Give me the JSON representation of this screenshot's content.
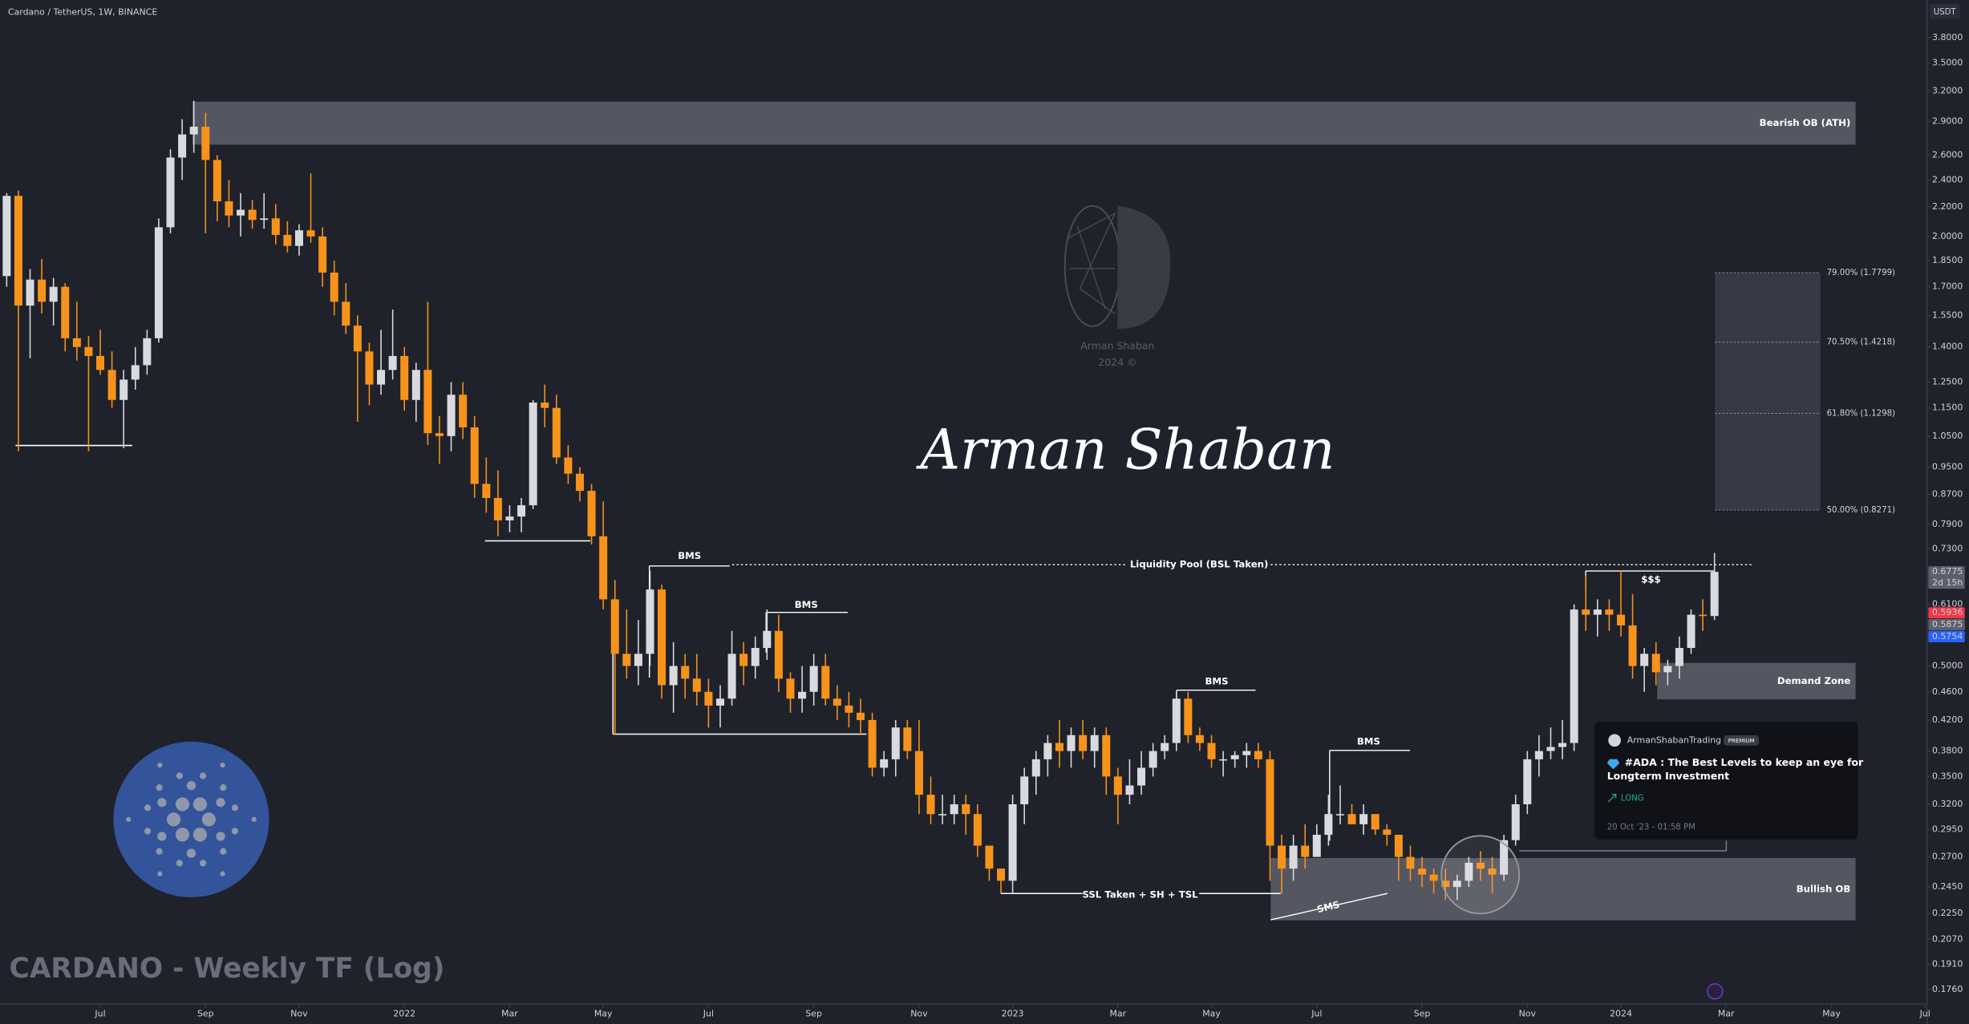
{
  "chart_data": {
    "type": "candlestick",
    "title": "Cardano / TetherUS, 1W, BINANCE",
    "subtitle": "CARDANO - Weekly TF (Log)",
    "y_unit": "USDT",
    "log_scale": true,
    "grid": false,
    "up_color": "#d8dae0",
    "down_color": "#f7931a",
    "ylim": [
      0.168,
      4.29
    ],
    "yticks": [
      {
        "value": 3.8,
        "label": "3.8000"
      },
      {
        "value": 3.5,
        "label": "3.5000"
      },
      {
        "value": 3.2,
        "label": "3.2000"
      },
      {
        "value": 2.9,
        "label": "2.9000"
      },
      {
        "value": 2.6,
        "label": "2.6000"
      },
      {
        "value": 2.4,
        "label": "2.4000"
      },
      {
        "value": 2.2,
        "label": "2.2000"
      },
      {
        "value": 2.0,
        "label": "2.0000"
      },
      {
        "value": 1.85,
        "label": "1.8500"
      },
      {
        "value": 1.7,
        "label": "1.7000"
      },
      {
        "value": 1.55,
        "label": "1.5500"
      },
      {
        "value": 1.4,
        "label": "1.4000"
      },
      {
        "value": 1.25,
        "label": "1.2500"
      },
      {
        "value": 1.15,
        "label": "1.1500"
      },
      {
        "value": 1.05,
        "label": "1.0500"
      },
      {
        "value": 0.95,
        "label": "0.9500"
      },
      {
        "value": 0.87,
        "label": "0.8700"
      },
      {
        "value": 0.79,
        "label": "0.7900"
      },
      {
        "value": 0.73,
        "label": "0.7300"
      },
      {
        "value": 0.61,
        "label": "0.6100"
      },
      {
        "value": 0.5,
        "label": "0.5000"
      },
      {
        "value": 0.46,
        "label": "0.4600"
      },
      {
        "value": 0.42,
        "label": "0.4200"
      },
      {
        "value": 0.38,
        "label": "0.3800"
      },
      {
        "value": 0.35,
        "label": "0.3500"
      },
      {
        "value": 0.32,
        "label": "0.3200"
      },
      {
        "value": 0.295,
        "label": "0.2950"
      },
      {
        "value": 0.27,
        "label": "0.2700"
      },
      {
        "value": 0.245,
        "label": "0.2450"
      },
      {
        "value": 0.225,
        "label": "0.2250"
      },
      {
        "value": 0.207,
        "label": "0.2070"
      },
      {
        "value": 0.191,
        "label": "0.1910"
      },
      {
        "value": 0.176,
        "label": "0.1760"
      }
    ],
    "price_labels": [
      {
        "value": 0.6775,
        "label": "0.6775",
        "note": "2d 15h",
        "color": "#5d606b"
      },
      {
        "value": 0.5936,
        "label": "0.5936",
        "color": "#f23645"
      },
      {
        "value": 0.5875,
        "label": "0.5875",
        "color": "#5d606b"
      },
      {
        "value": 0.5754,
        "label": "0.5754",
        "color": "#2962ff"
      }
    ],
    "categories": [
      null,
      null,
      null,
      null,
      null,
      null,
      null,
      null,
      "Jul",
      null,
      null,
      null,
      null,
      null,
      null,
      null,
      null,
      "Sep",
      null,
      null,
      null,
      null,
      null,
      null,
      null,
      "Nov",
      null,
      null,
      null,
      null,
      null,
      null,
      null,
      null,
      "2022",
      null,
      null,
      null,
      null,
      null,
      null,
      null,
      null,
      "Mar",
      null,
      null,
      null,
      null,
      null,
      null,
      null,
      "May",
      null,
      null,
      null,
      null,
      null,
      null,
      null,
      null,
      "Jul",
      null,
      null,
      null,
      null,
      null,
      null,
      null,
      null,
      "Sep",
      null,
      null,
      null,
      null,
      null,
      null,
      null,
      null,
      "Nov",
      null,
      null,
      null,
      null,
      null,
      null,
      null,
      "2023",
      null,
      null,
      null,
      null,
      null,
      null,
      null,
      null,
      "Mar",
      null,
      null,
      null,
      null,
      null,
      null,
      null,
      "May",
      null,
      null,
      null,
      null,
      null,
      null,
      null,
      null,
      "Jul",
      null,
      null,
      null,
      null,
      null,
      null,
      null,
      null,
      "Sep",
      null,
      null,
      null,
      null,
      null,
      null,
      null,
      null,
      "Nov",
      null,
      null,
      null,
      null,
      null,
      null,
      null,
      "2024",
      null,
      null,
      null,
      null,
      null,
      null,
      null,
      null,
      "Mar",
      null,
      null,
      null,
      null,
      null,
      null,
      null,
      null,
      "May",
      null,
      null,
      null,
      null,
      null,
      null,
      null,
      "Jul"
    ],
    "ohlc": [
      [
        1.76,
        2.3,
        1.7,
        2.28
      ],
      [
        2.28,
        2.32,
        1.0,
        1.6
      ],
      [
        1.6,
        1.8,
        1.35,
        1.74
      ],
      [
        1.74,
        1.86,
        1.56,
        1.62
      ],
      [
        1.62,
        1.75,
        1.5,
        1.7
      ],
      [
        1.7,
        1.72,
        1.38,
        1.44
      ],
      [
        1.44,
        1.62,
        1.34,
        1.4
      ],
      [
        1.4,
        1.45,
        1.0,
        1.36
      ],
      [
        1.36,
        1.48,
        1.28,
        1.3
      ],
      [
        1.3,
        1.38,
        1.15,
        1.18
      ],
      [
        1.18,
        1.3,
        1.01,
        1.26
      ],
      [
        1.26,
        1.4,
        1.22,
        1.32
      ],
      [
        1.32,
        1.48,
        1.28,
        1.44
      ],
      [
        1.44,
        2.12,
        1.42,
        2.06
      ],
      [
        2.06,
        2.65,
        2.02,
        2.58
      ],
      [
        2.58,
        2.92,
        2.4,
        2.78
      ],
      [
        2.78,
        3.1,
        2.62,
        2.85
      ],
      [
        2.85,
        2.98,
        2.02,
        2.56
      ],
      [
        2.56,
        2.6,
        2.1,
        2.24
      ],
      [
        2.24,
        2.4,
        2.06,
        2.14
      ],
      [
        2.14,
        2.3,
        2.0,
        2.18
      ],
      [
        2.18,
        2.25,
        2.05,
        2.11
      ],
      [
        2.11,
        2.3,
        2.05,
        2.12
      ],
      [
        2.12,
        2.22,
        1.95,
        2.01
      ],
      [
        2.01,
        2.1,
        1.9,
        1.94
      ],
      [
        1.94,
        2.08,
        1.88,
        2.04
      ],
      [
        2.04,
        2.45,
        1.96,
        2.0
      ],
      [
        2.0,
        2.06,
        1.7,
        1.78
      ],
      [
        1.78,
        1.85,
        1.55,
        1.62
      ],
      [
        1.62,
        1.72,
        1.46,
        1.5
      ],
      [
        1.5,
        1.55,
        1.1,
        1.38
      ],
      [
        1.38,
        1.42,
        1.16,
        1.24
      ],
      [
        1.24,
        1.48,
        1.2,
        1.3
      ],
      [
        1.3,
        1.58,
        1.26,
        1.36
      ],
      [
        1.36,
        1.4,
        1.14,
        1.18
      ],
      [
        1.18,
        1.33,
        1.1,
        1.3
      ],
      [
        1.3,
        1.62,
        1.02,
        1.06
      ],
      [
        1.06,
        1.12,
        0.96,
        1.05
      ],
      [
        1.05,
        1.25,
        1.0,
        1.2
      ],
      [
        1.2,
        1.25,
        1.04,
        1.08
      ],
      [
        1.08,
        1.12,
        0.86,
        0.9
      ],
      [
        0.9,
        0.98,
        0.82,
        0.86
      ],
      [
        0.86,
        0.94,
        0.76,
        0.8
      ],
      [
        0.8,
        0.84,
        0.77,
        0.81
      ],
      [
        0.81,
        0.86,
        0.77,
        0.84
      ],
      [
        0.84,
        1.18,
        0.83,
        1.17
      ],
      [
        1.17,
        1.24,
        1.08,
        1.15
      ],
      [
        1.15,
        1.2,
        0.96,
        0.98
      ],
      [
        0.98,
        1.02,
        0.9,
        0.93
      ],
      [
        0.93,
        0.95,
        0.85,
        0.88
      ],
      [
        0.88,
        0.9,
        0.74,
        0.76
      ],
      [
        0.76,
        0.85,
        0.6,
        0.62
      ],
      [
        0.62,
        0.66,
        0.4,
        0.52
      ],
      [
        0.52,
        0.6,
        0.48,
        0.5
      ],
      [
        0.5,
        0.58,
        0.47,
        0.52
      ],
      [
        0.52,
        0.68,
        0.5,
        0.64
      ],
      [
        0.64,
        0.65,
        0.45,
        0.47
      ],
      [
        0.47,
        0.54,
        0.43,
        0.5
      ],
      [
        0.5,
        0.52,
        0.45,
        0.48
      ],
      [
        0.48,
        0.52,
        0.44,
        0.46
      ],
      [
        0.46,
        0.48,
        0.41,
        0.44
      ],
      [
        0.44,
        0.47,
        0.41,
        0.45
      ],
      [
        0.45,
        0.56,
        0.44,
        0.52
      ],
      [
        0.52,
        0.54,
        0.47,
        0.5
      ],
      [
        0.5,
        0.55,
        0.48,
        0.53
      ],
      [
        0.53,
        0.6,
        0.51,
        0.56
      ],
      [
        0.56,
        0.59,
        0.46,
        0.48
      ],
      [
        0.48,
        0.49,
        0.43,
        0.45
      ],
      [
        0.45,
        0.5,
        0.43,
        0.46
      ],
      [
        0.46,
        0.52,
        0.44,
        0.5
      ],
      [
        0.5,
        0.52,
        0.44,
        0.45
      ],
      [
        0.45,
        0.47,
        0.42,
        0.44
      ],
      [
        0.44,
        0.46,
        0.41,
        0.43
      ],
      [
        0.43,
        0.45,
        0.4,
        0.42
      ],
      [
        0.42,
        0.43,
        0.35,
        0.36
      ],
      [
        0.36,
        0.38,
        0.35,
        0.37
      ],
      [
        0.37,
        0.42,
        0.35,
        0.41
      ],
      [
        0.41,
        0.42,
        0.37,
        0.38
      ],
      [
        0.38,
        0.42,
        0.31,
        0.33
      ],
      [
        0.33,
        0.35,
        0.3,
        0.31
      ],
      [
        0.31,
        0.33,
        0.3,
        0.31
      ],
      [
        0.31,
        0.33,
        0.3,
        0.32
      ],
      [
        0.32,
        0.33,
        0.29,
        0.31
      ],
      [
        0.31,
        0.32,
        0.27,
        0.28
      ],
      [
        0.28,
        0.28,
        0.25,
        0.26
      ],
      [
        0.26,
        0.26,
        0.24,
        0.25
      ],
      [
        0.25,
        0.33,
        0.24,
        0.32
      ],
      [
        0.32,
        0.36,
        0.3,
        0.35
      ],
      [
        0.35,
        0.38,
        0.33,
        0.37
      ],
      [
        0.37,
        0.4,
        0.35,
        0.39
      ],
      [
        0.39,
        0.42,
        0.36,
        0.38
      ],
      [
        0.38,
        0.41,
        0.36,
        0.4
      ],
      [
        0.4,
        0.42,
        0.37,
        0.38
      ],
      [
        0.38,
        0.41,
        0.36,
        0.4
      ],
      [
        0.4,
        0.41,
        0.33,
        0.35
      ],
      [
        0.35,
        0.36,
        0.3,
        0.33
      ],
      [
        0.33,
        0.37,
        0.32,
        0.34
      ],
      [
        0.34,
        0.38,
        0.33,
        0.36
      ],
      [
        0.36,
        0.39,
        0.35,
        0.38
      ],
      [
        0.38,
        0.4,
        0.37,
        0.39
      ],
      [
        0.39,
        0.46,
        0.38,
        0.45
      ],
      [
        0.45,
        0.46,
        0.39,
        0.4
      ],
      [
        0.4,
        0.41,
        0.38,
        0.39
      ],
      [
        0.39,
        0.4,
        0.36,
        0.37
      ],
      [
        0.37,
        0.38,
        0.35,
        0.37
      ],
      [
        0.37,
        0.38,
        0.36,
        0.375
      ],
      [
        0.375,
        0.39,
        0.36,
        0.38
      ],
      [
        0.38,
        0.39,
        0.36,
        0.37
      ],
      [
        0.37,
        0.38,
        0.25,
        0.28
      ],
      [
        0.28,
        0.29,
        0.24,
        0.26
      ],
      [
        0.26,
        0.29,
        0.25,
        0.28
      ],
      [
        0.28,
        0.3,
        0.26,
        0.27
      ],
      [
        0.27,
        0.3,
        0.27,
        0.29
      ],
      [
        0.29,
        0.33,
        0.28,
        0.31
      ],
      [
        0.31,
        0.34,
        0.3,
        0.31
      ],
      [
        0.31,
        0.32,
        0.3,
        0.3
      ],
      [
        0.3,
        0.32,
        0.29,
        0.31
      ],
      [
        0.31,
        0.31,
        0.29,
        0.295
      ],
      [
        0.295,
        0.3,
        0.28,
        0.29
      ],
      [
        0.29,
        0.29,
        0.25,
        0.27
      ],
      [
        0.27,
        0.28,
        0.25,
        0.26
      ],
      [
        0.26,
        0.27,
        0.245,
        0.255
      ],
      [
        0.255,
        0.26,
        0.24,
        0.25
      ],
      [
        0.25,
        0.26,
        0.235,
        0.245
      ],
      [
        0.245,
        0.255,
        0.235,
        0.25
      ],
      [
        0.25,
        0.27,
        0.245,
        0.265
      ],
      [
        0.265,
        0.275,
        0.25,
        0.26
      ],
      [
        0.26,
        0.27,
        0.24,
        0.255
      ],
      [
        0.255,
        0.29,
        0.25,
        0.285
      ],
      [
        0.285,
        0.33,
        0.28,
        0.32
      ],
      [
        0.32,
        0.38,
        0.31,
        0.37
      ],
      [
        0.37,
        0.4,
        0.35,
        0.38
      ],
      [
        0.38,
        0.41,
        0.37,
        0.385
      ],
      [
        0.385,
        0.42,
        0.37,
        0.39
      ],
      [
        0.39,
        0.61,
        0.38,
        0.6
      ],
      [
        0.6,
        0.67,
        0.56,
        0.59
      ],
      [
        0.59,
        0.62,
        0.55,
        0.6
      ],
      [
        0.6,
        0.62,
        0.56,
        0.59
      ],
      [
        0.59,
        0.68,
        0.55,
        0.57
      ],
      [
        0.57,
        0.63,
        0.48,
        0.5
      ],
      [
        0.5,
        0.53,
        0.46,
        0.52
      ],
      [
        0.52,
        0.54,
        0.47,
        0.49
      ],
      [
        0.49,
        0.51,
        0.47,
        0.5
      ],
      [
        0.5,
        0.55,
        0.48,
        0.53
      ],
      [
        0.53,
        0.6,
        0.52,
        0.59
      ],
      [
        0.59,
        0.62,
        0.56,
        0.5875
      ],
      [
        0.5875,
        0.72,
        0.58,
        0.6775
      ],
      null,
      null,
      null,
      null,
      null,
      null,
      null,
      null,
      null,
      null,
      null,
      null,
      null,
      null,
      null,
      null,
      null,
      null
    ],
    "zones": [
      {
        "label": "Bearish OB (ATH)",
        "top": 3.09,
        "bottom": 2.69
      },
      {
        "label": "Demand Zone",
        "top": 0.505,
        "bottom": 0.449
      },
      {
        "label": "Bullish OB",
        "top": 0.269,
        "bottom": 0.22
      }
    ],
    "fib_levels": [
      {
        "value": 1.7799,
        "label": "79.00% (1.7799)"
      },
      {
        "value": 1.4218,
        "label": "70.50% (1.4218)"
      },
      {
        "value": 1.1298,
        "label": "61.80% (1.1298)"
      },
      {
        "value": 0.8271,
        "label": "50.00% (0.8271)"
      }
    ],
    "annotations": [
      "BMS",
      "BMS",
      "BMS",
      "BMS",
      "Liquidity Pool (BSL Taken)",
      "$$$",
      "SSL Taken + SH + TSL",
      "SMS"
    ]
  },
  "watermark": {
    "signature": "Arman Shaban",
    "logo_name": "Arman Shaban",
    "logo_year": "2024 ©"
  },
  "idea_card": {
    "author": "ArmanShabanTrading",
    "badge": "PREMIUM",
    "title_lines": [
      "#ADA : The Best Levels to keep an eye for",
      "Longterm Investment"
    ],
    "direction": "LONG",
    "date": "20 Oct '23 - 01:58 PM"
  }
}
